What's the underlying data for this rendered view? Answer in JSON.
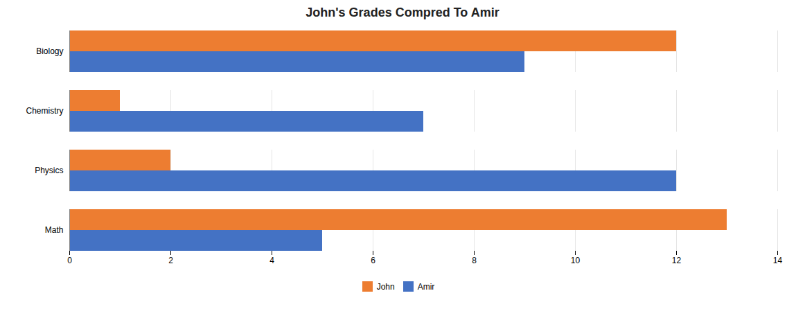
{
  "chart_data": {
    "type": "bar",
    "orientation": "horizontal",
    "title": "John's Grades Compred To Amir",
    "categories": [
      "Math",
      "Physics",
      "Chemistry",
      "Biology"
    ],
    "series": [
      {
        "name": "John",
        "color": "#ED7D31",
        "values": [
          13,
          2,
          1,
          12
        ]
      },
      {
        "name": "Amir",
        "color": "#4472C4",
        "values": [
          5,
          12,
          7,
          9
        ]
      }
    ],
    "xlim": [
      0,
      14
    ],
    "xticks": [
      0,
      2,
      4,
      6,
      8,
      10,
      12,
      14
    ],
    "grid": true,
    "legend": "bottom"
  }
}
